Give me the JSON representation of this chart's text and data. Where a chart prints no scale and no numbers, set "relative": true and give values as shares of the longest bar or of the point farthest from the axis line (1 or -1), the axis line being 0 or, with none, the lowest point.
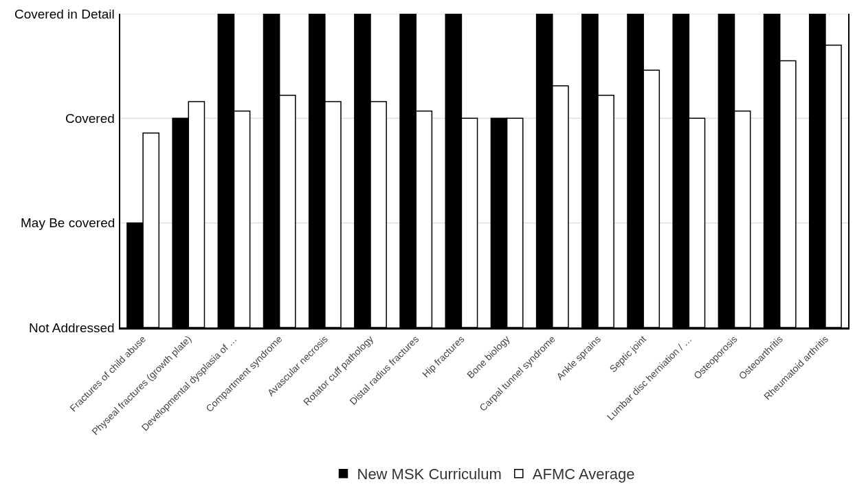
{
  "chart_data": {
    "type": "bar",
    "relative": true,
    "categories": [
      "Fractures of child abuse",
      "Physeal fractures (growth plate)",
      "Developmental dysplasia of …",
      "Compartment syndrome",
      "Avascular necrosis",
      "Rotator cuff pathology",
      "Distal radius fractures",
      "Hip fractures",
      "Bone biology",
      "Carpal tunnel syndrome",
      "Ankle sprains",
      "Septic joint",
      "Lumbar disc herniation / …",
      "Osteoporosis",
      "Osteoarthritis",
      "Rheumatoid arthritis"
    ],
    "series": [
      {
        "name": "New MSK Curriculum",
        "color": "#000000",
        "values": [
          0.333,
          0.667,
          1,
          1,
          1,
          1,
          1,
          1,
          0.667,
          1,
          1,
          1,
          1,
          1,
          1,
          1
        ]
      },
      {
        "name": "AFMC Average",
        "color": "#ffffff",
        "values": [
          0.62,
          0.72,
          0.69,
          0.74,
          0.72,
          0.72,
          0.69,
          0.667,
          0.667,
          0.77,
          0.74,
          0.82,
          0.667,
          0.69,
          0.85,
          0.9
        ]
      }
    ],
    "ref_lines": [
      {
        "axis": "y",
        "value": 0,
        "label": "Not Addressed",
        "color": "#d0d0d0"
      },
      {
        "axis": "y",
        "value": 0.333,
        "label": "May Be covered",
        "color": "#d0d0d0"
      },
      {
        "axis": "y",
        "value": 0.667,
        "label": "Covered",
        "color": "#d0d0d0"
      },
      {
        "axis": "y",
        "value": 1,
        "label": "Covered in Detail",
        "color": "#d0d0d0"
      }
    ],
    "legend": "bottom"
  }
}
